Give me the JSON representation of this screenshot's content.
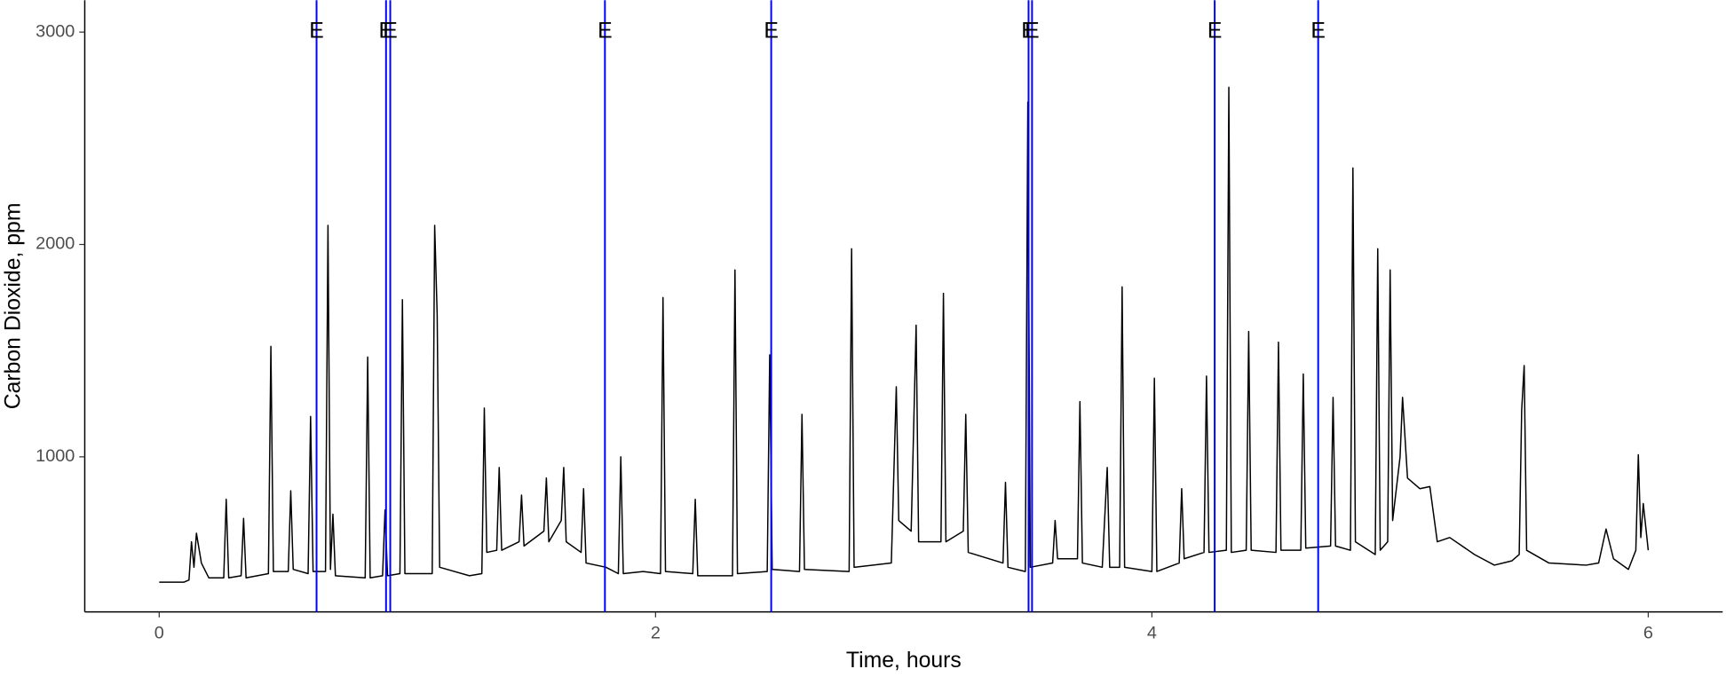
{
  "chart_data": {
    "type": "line",
    "x_label": "Time, hours",
    "y_label": "Carbon Dioxide, ppm",
    "xlim": [
      -0.3,
      6.3
    ],
    "ylim": [
      270,
      3150
    ],
    "xticks": [
      0,
      2,
      4,
      6
    ],
    "yticks": [
      1000,
      2000,
      3000
    ],
    "grid": false,
    "x": [
      0,
      0.1,
      0.12,
      0.13,
      0.14,
      0.15,
      0.17,
      0.2,
      0.26,
      0.27,
      0.28,
      0.33,
      0.34,
      0.35,
      0.44,
      0.45,
      0.46,
      0.52,
      0.53,
      0.54,
      0.6,
      0.61,
      0.62,
      0.67,
      0.68,
      0.69,
      0.7,
      0.71,
      0.83,
      0.84,
      0.85,
      0.9,
      0.91,
      0.92,
      0.97,
      0.98,
      0.99,
      1.1,
      1.11,
      1.12,
      1.13,
      1.25,
      1.3,
      1.31,
      1.32,
      1.36,
      1.37,
      1.38,
      1.45,
      1.46,
      1.47,
      1.55,
      1.56,
      1.57,
      1.62,
      1.63,
      1.64,
      1.7,
      1.71,
      1.72,
      1.8,
      1.85,
      1.86,
      1.87,
      1.95,
      2.02,
      2.03,
      2.04,
      2.15,
      2.16,
      2.17,
      2.31,
      2.32,
      2.33,
      2.45,
      2.46,
      2.47,
      2.58,
      2.59,
      2.6,
      2.78,
      2.79,
      2.8,
      2.95,
      2.97,
      2.98,
      3.03,
      3.05,
      3.06,
      3.15,
      3.16,
      3.17,
      3.24,
      3.25,
      3.26,
      3.4,
      3.41,
      3.42,
      3.49,
      3.5,
      3.51,
      3.6,
      3.61,
      3.62,
      3.7,
      3.71,
      3.72,
      3.8,
      3.82,
      3.83,
      3.87,
      3.88,
      3.89,
      4.0,
      4.01,
      4.02,
      4.11,
      4.12,
      4.13,
      4.21,
      4.22,
      4.23,
      4.3,
      4.31,
      4.32,
      4.38,
      4.39,
      4.4,
      4.5,
      4.51,
      4.52,
      4.6,
      4.61,
      4.62,
      4.72,
      4.73,
      4.74,
      4.8,
      4.81,
      4.82,
      4.9,
      4.91,
      4.92,
      4.95,
      4.96,
      4.97,
      5.0,
      5.01,
      5.03,
      5.08,
      5.12,
      5.15,
      5.2,
      5.3,
      5.38,
      5.45,
      5.48,
      5.49,
      5.5,
      5.51,
      5.6,
      5.75,
      5.8,
      5.83,
      5.86,
      5.92,
      5.95,
      5.96,
      5.97,
      5.98,
      6.0
    ],
    "series": [
      {
        "color": "#000000",
        "values": [
          410,
          410,
          420,
          600,
          480,
          640,
          500,
          430,
          430,
          800,
          430,
          440,
          710,
          430,
          450,
          1520,
          460,
          460,
          840,
          470,
          450,
          1190,
          460,
          460,
          2090,
          470,
          730,
          440,
          430,
          1470,
          430,
          440,
          750,
          440,
          450,
          1740,
          450,
          450,
          2090,
          1670,
          480,
          440,
          450,
          1230,
          550,
          560,
          950,
          560,
          600,
          820,
          580,
          650,
          900,
          600,
          700,
          950,
          600,
          550,
          850,
          500,
          480,
          450,
          1000,
          450,
          460,
          450,
          1750,
          460,
          450,
          800,
          440,
          440,
          1880,
          450,
          460,
          1480,
          470,
          460,
          1200,
          470,
          460,
          1980,
          480,
          500,
          1330,
          700,
          650,
          1620,
          600,
          600,
          1770,
          600,
          650,
          1200,
          550,
          500,
          880,
          480,
          460,
          2670,
          480,
          500,
          700,
          520,
          520,
          1260,
          500,
          480,
          950,
          480,
          480,
          1800,
          480,
          460,
          1370,
          460,
          500,
          850,
          520,
          550,
          1380,
          550,
          560,
          2740,
          550,
          560,
          1590,
          560,
          550,
          1540,
          560,
          560,
          1390,
          570,
          580,
          1280,
          580,
          560,
          2360,
          600,
          540,
          1980,
          560,
          600,
          1880,
          700,
          1000,
          1280,
          900,
          850,
          860,
          600,
          620,
          540,
          490,
          510,
          540,
          1220,
          1430,
          560,
          500,
          490,
          500,
          660,
          520,
          470,
          560,
          1010,
          620,
          780,
          560
        ]
      }
    ],
    "event_color": "#0000ff",
    "event_label_y": 3000,
    "events": [
      {
        "x": 0.634,
        "label": "E"
      },
      {
        "x": 0.914,
        "label": "E"
      },
      {
        "x": 0.931,
        "label": "E"
      },
      {
        "x": 1.796,
        "label": "E"
      },
      {
        "x": 2.466,
        "label": "E"
      },
      {
        "x": 3.503,
        "label": "E"
      },
      {
        "x": 3.517,
        "label": "E"
      },
      {
        "x": 4.253,
        "label": "E"
      },
      {
        "x": 4.67,
        "label": "E"
      }
    ]
  }
}
